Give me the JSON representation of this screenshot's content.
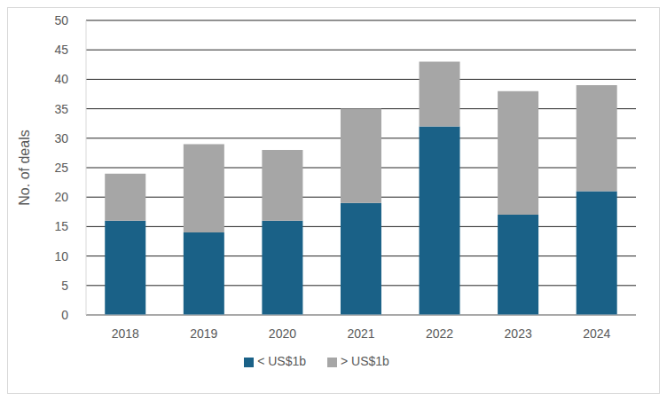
{
  "chart_data": {
    "type": "bar",
    "ylabel": "No. of deals",
    "categories": [
      "2018",
      "2019",
      "2020",
      "2021",
      "2022",
      "2023",
      "2024"
    ],
    "series": [
      {
        "name": "< US$1b",
        "color": "#1a6187",
        "values": [
          16,
          14,
          16,
          19,
          32,
          17,
          21
        ]
      },
      {
        "name": "> US$1b",
        "color": "#a6a6a6",
        "values": [
          8,
          15,
          12,
          16,
          11,
          21,
          18
        ]
      }
    ],
    "ylim": [
      0,
      50
    ],
    "yticks": [
      0,
      5,
      10,
      15,
      20,
      25,
      30,
      35,
      40,
      45,
      50
    ],
    "grid": true,
    "stacked": true,
    "legend": "bottom"
  }
}
